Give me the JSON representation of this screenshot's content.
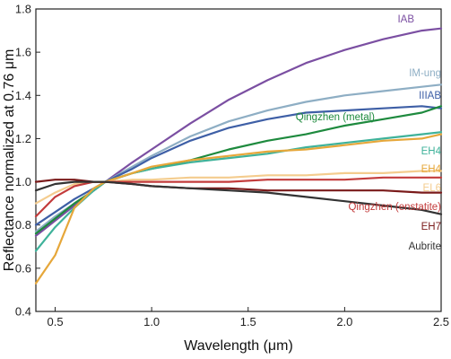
{
  "chart_data": {
    "type": "line",
    "xlabel": "Wavelength (μm)",
    "ylabel": "Reflectance normalized at 0.76 μm",
    "xlim": [
      0.4,
      2.5
    ],
    "ylim": [
      0.4,
      1.8
    ],
    "xticks": [
      0.5,
      1.0,
      1.5,
      2.0,
      2.5
    ],
    "xtick_labels": [
      "0.5",
      "1.0",
      "1.5",
      "2.0",
      "2.5"
    ],
    "yticks": [
      0.4,
      0.6,
      0.8,
      1.0,
      1.2,
      1.4,
      1.6,
      1.8
    ],
    "ytick_labels": [
      "0.4",
      "0.6",
      "0.8",
      "1.0",
      "1.2",
      "1.4",
      "1.6",
      "1.8"
    ],
    "grid": false,
    "legend": "inline labels at right end of each curve",
    "series": [
      {
        "name": "IAB",
        "color": "#7b4fa2",
        "x": [
          0.4,
          0.5,
          0.6,
          0.7,
          0.76,
          0.9,
          1.0,
          1.2,
          1.4,
          1.6,
          1.8,
          2.0,
          2.2,
          2.4,
          2.5
        ],
        "y": [
          0.75,
          0.82,
          0.89,
          0.96,
          1.0,
          1.09,
          1.15,
          1.27,
          1.38,
          1.47,
          1.55,
          1.61,
          1.66,
          1.7,
          1.71
        ]
      },
      {
        "name": "IM-ung",
        "color": "#8eaec4",
        "x": [
          0.4,
          0.5,
          0.6,
          0.7,
          0.76,
          0.9,
          1.0,
          1.2,
          1.4,
          1.6,
          1.8,
          2.0,
          2.2,
          2.4,
          2.5
        ],
        "y": [
          0.77,
          0.84,
          0.9,
          0.96,
          1.0,
          1.07,
          1.12,
          1.21,
          1.28,
          1.33,
          1.37,
          1.4,
          1.42,
          1.44,
          1.45
        ]
      },
      {
        "name": "IIIAB",
        "color": "#3e5fa6",
        "x": [
          0.4,
          0.5,
          0.6,
          0.7,
          0.76,
          0.9,
          1.0,
          1.2,
          1.4,
          1.6,
          1.8,
          2.0,
          2.2,
          2.4,
          2.5
        ],
        "y": [
          0.8,
          0.86,
          0.92,
          0.97,
          1.0,
          1.06,
          1.11,
          1.19,
          1.25,
          1.29,
          1.32,
          1.33,
          1.34,
          1.35,
          1.34
        ]
      },
      {
        "name": "Qingzhen (metal)",
        "color": "#1e8a3e",
        "x": [
          0.4,
          0.5,
          0.6,
          0.7,
          0.76,
          0.9,
          1.0,
          1.2,
          1.4,
          1.6,
          1.8,
          2.0,
          2.2,
          2.4,
          2.5
        ],
        "y": [
          0.76,
          0.83,
          0.9,
          0.96,
          1.0,
          1.04,
          1.06,
          1.1,
          1.15,
          1.19,
          1.22,
          1.26,
          1.29,
          1.32,
          1.35
        ]
      },
      {
        "name": "EH4",
        "color": "#3fb29a",
        "x": [
          0.4,
          0.5,
          0.6,
          0.7,
          0.76,
          0.9,
          1.0,
          1.2,
          1.4,
          1.6,
          1.8,
          2.0,
          2.2,
          2.4,
          2.5
        ],
        "y": [
          0.68,
          0.79,
          0.88,
          0.96,
          1.0,
          1.04,
          1.06,
          1.09,
          1.11,
          1.13,
          1.16,
          1.18,
          1.2,
          1.22,
          1.23
        ]
      },
      {
        "name": "EH4",
        "color": "#e6a73a",
        "x": [
          0.4,
          0.5,
          0.6,
          0.7,
          0.76,
          0.9,
          1.0,
          1.2,
          1.4,
          1.6,
          1.8,
          2.0,
          2.2,
          2.4,
          2.5
        ],
        "y": [
          0.53,
          0.66,
          0.88,
          0.97,
          1.0,
          1.04,
          1.07,
          1.1,
          1.12,
          1.14,
          1.15,
          1.17,
          1.19,
          1.2,
          1.22
        ]
      },
      {
        "name": "EL6",
        "color": "#f4cc8e",
        "x": [
          0.4,
          0.5,
          0.6,
          0.7,
          0.76,
          0.9,
          1.0,
          1.2,
          1.4,
          1.6,
          1.8,
          2.0,
          2.2,
          2.4,
          2.5
        ],
        "y": [
          0.9,
          0.95,
          0.99,
          1.0,
          1.0,
          1.01,
          1.01,
          1.02,
          1.02,
          1.03,
          1.03,
          1.04,
          1.04,
          1.05,
          1.05
        ]
      },
      {
        "name": "Qingzhen (enstatite)",
        "color": "#c33b3b",
        "x": [
          0.4,
          0.5,
          0.6,
          0.7,
          0.76,
          0.9,
          1.0,
          1.2,
          1.4,
          1.6,
          1.8,
          2.0,
          2.2,
          2.4,
          2.5
        ],
        "y": [
          0.84,
          0.93,
          0.98,
          1.0,
          1.0,
          1.0,
          1.0,
          1.0,
          1.0,
          1.01,
          1.01,
          1.01,
          1.02,
          1.02,
          1.02
        ]
      },
      {
        "name": "EH7",
        "color": "#7a1a1a",
        "x": [
          0.4,
          0.5,
          0.6,
          0.7,
          0.76,
          0.9,
          1.0,
          1.2,
          1.4,
          1.6,
          1.8,
          2.0,
          2.2,
          2.4,
          2.5
        ],
        "y": [
          1.0,
          1.01,
          1.01,
          1.0,
          1.0,
          0.99,
          0.98,
          0.97,
          0.97,
          0.96,
          0.96,
          0.96,
          0.96,
          0.95,
          0.95
        ]
      },
      {
        "name": "Aubrite",
        "color": "#333333",
        "x": [
          0.4,
          0.5,
          0.6,
          0.7,
          0.76,
          0.9,
          1.0,
          1.2,
          1.4,
          1.6,
          1.8,
          2.0,
          2.2,
          2.4,
          2.5
        ],
        "y": [
          0.96,
          0.99,
          1.0,
          1.0,
          1.0,
          0.99,
          0.98,
          0.97,
          0.96,
          0.95,
          0.93,
          0.91,
          0.89,
          0.87,
          0.85
        ]
      }
    ]
  }
}
